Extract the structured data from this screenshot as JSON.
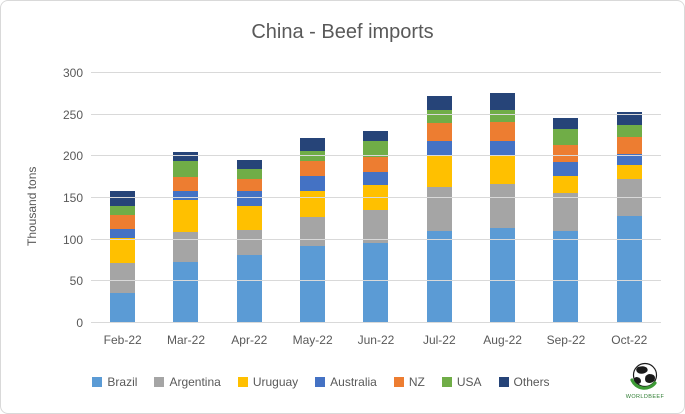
{
  "window": {
    "background": "#ffffff",
    "border_color": "#d9d9d9"
  },
  "chart_data": {
    "type": "bar",
    "stacked": true,
    "title": "China - Beef imports",
    "xlabel": "",
    "ylabel": "Thousand tons",
    "ylim": [
      0,
      300
    ],
    "yticks": [
      0,
      50,
      100,
      150,
      200,
      250,
      300
    ],
    "grid": true,
    "legend_position": "bottom",
    "text_color": "#595959",
    "grid_color": "#d9d9d9",
    "categories": [
      "Feb-22",
      "Mar-22",
      "Apr-22",
      "May-22",
      "Jun-22",
      "Jul-22",
      "Aug-22",
      "Sep-22",
      "Oct-22"
    ],
    "series": [
      {
        "name": "Brazil",
        "color": "#5B9BD5",
        "values": [
          36,
          73,
          82,
          93,
          96,
          111,
          114,
          110,
          129
        ]
      },
      {
        "name": "Argentina",
        "color": "#A5A5A5",
        "values": [
          36,
          36,
          30,
          34,
          40,
          52,
          53,
          46,
          44
        ]
      },
      {
        "name": "Uruguay",
        "color": "#FFC000",
        "values": [
          30,
          39,
          29,
          32,
          30,
          37,
          34,
          21,
          17
        ]
      },
      {
        "name": "Australia",
        "color": "#4472C4",
        "values": [
          11,
          11,
          17,
          18,
          15,
          18,
          18,
          16,
          13
        ]
      },
      {
        "name": "NZ",
        "color": "#ED7D31",
        "values": [
          17,
          16,
          15,
          18,
          18,
          22,
          22,
          21,
          20
        ]
      },
      {
        "name": "USA",
        "color": "#70AD47",
        "values": [
          11,
          20,
          12,
          12,
          19,
          16,
          15,
          19,
          15
        ]
      },
      {
        "name": "Others",
        "color": "#264478",
        "values": [
          18,
          10,
          11,
          15,
          13,
          17,
          20,
          13,
          15
        ]
      }
    ]
  },
  "logo": {
    "text": "WORLDBEEF",
    "accent_green": "#3d9b35",
    "globe_color": "#1a1a1a"
  }
}
